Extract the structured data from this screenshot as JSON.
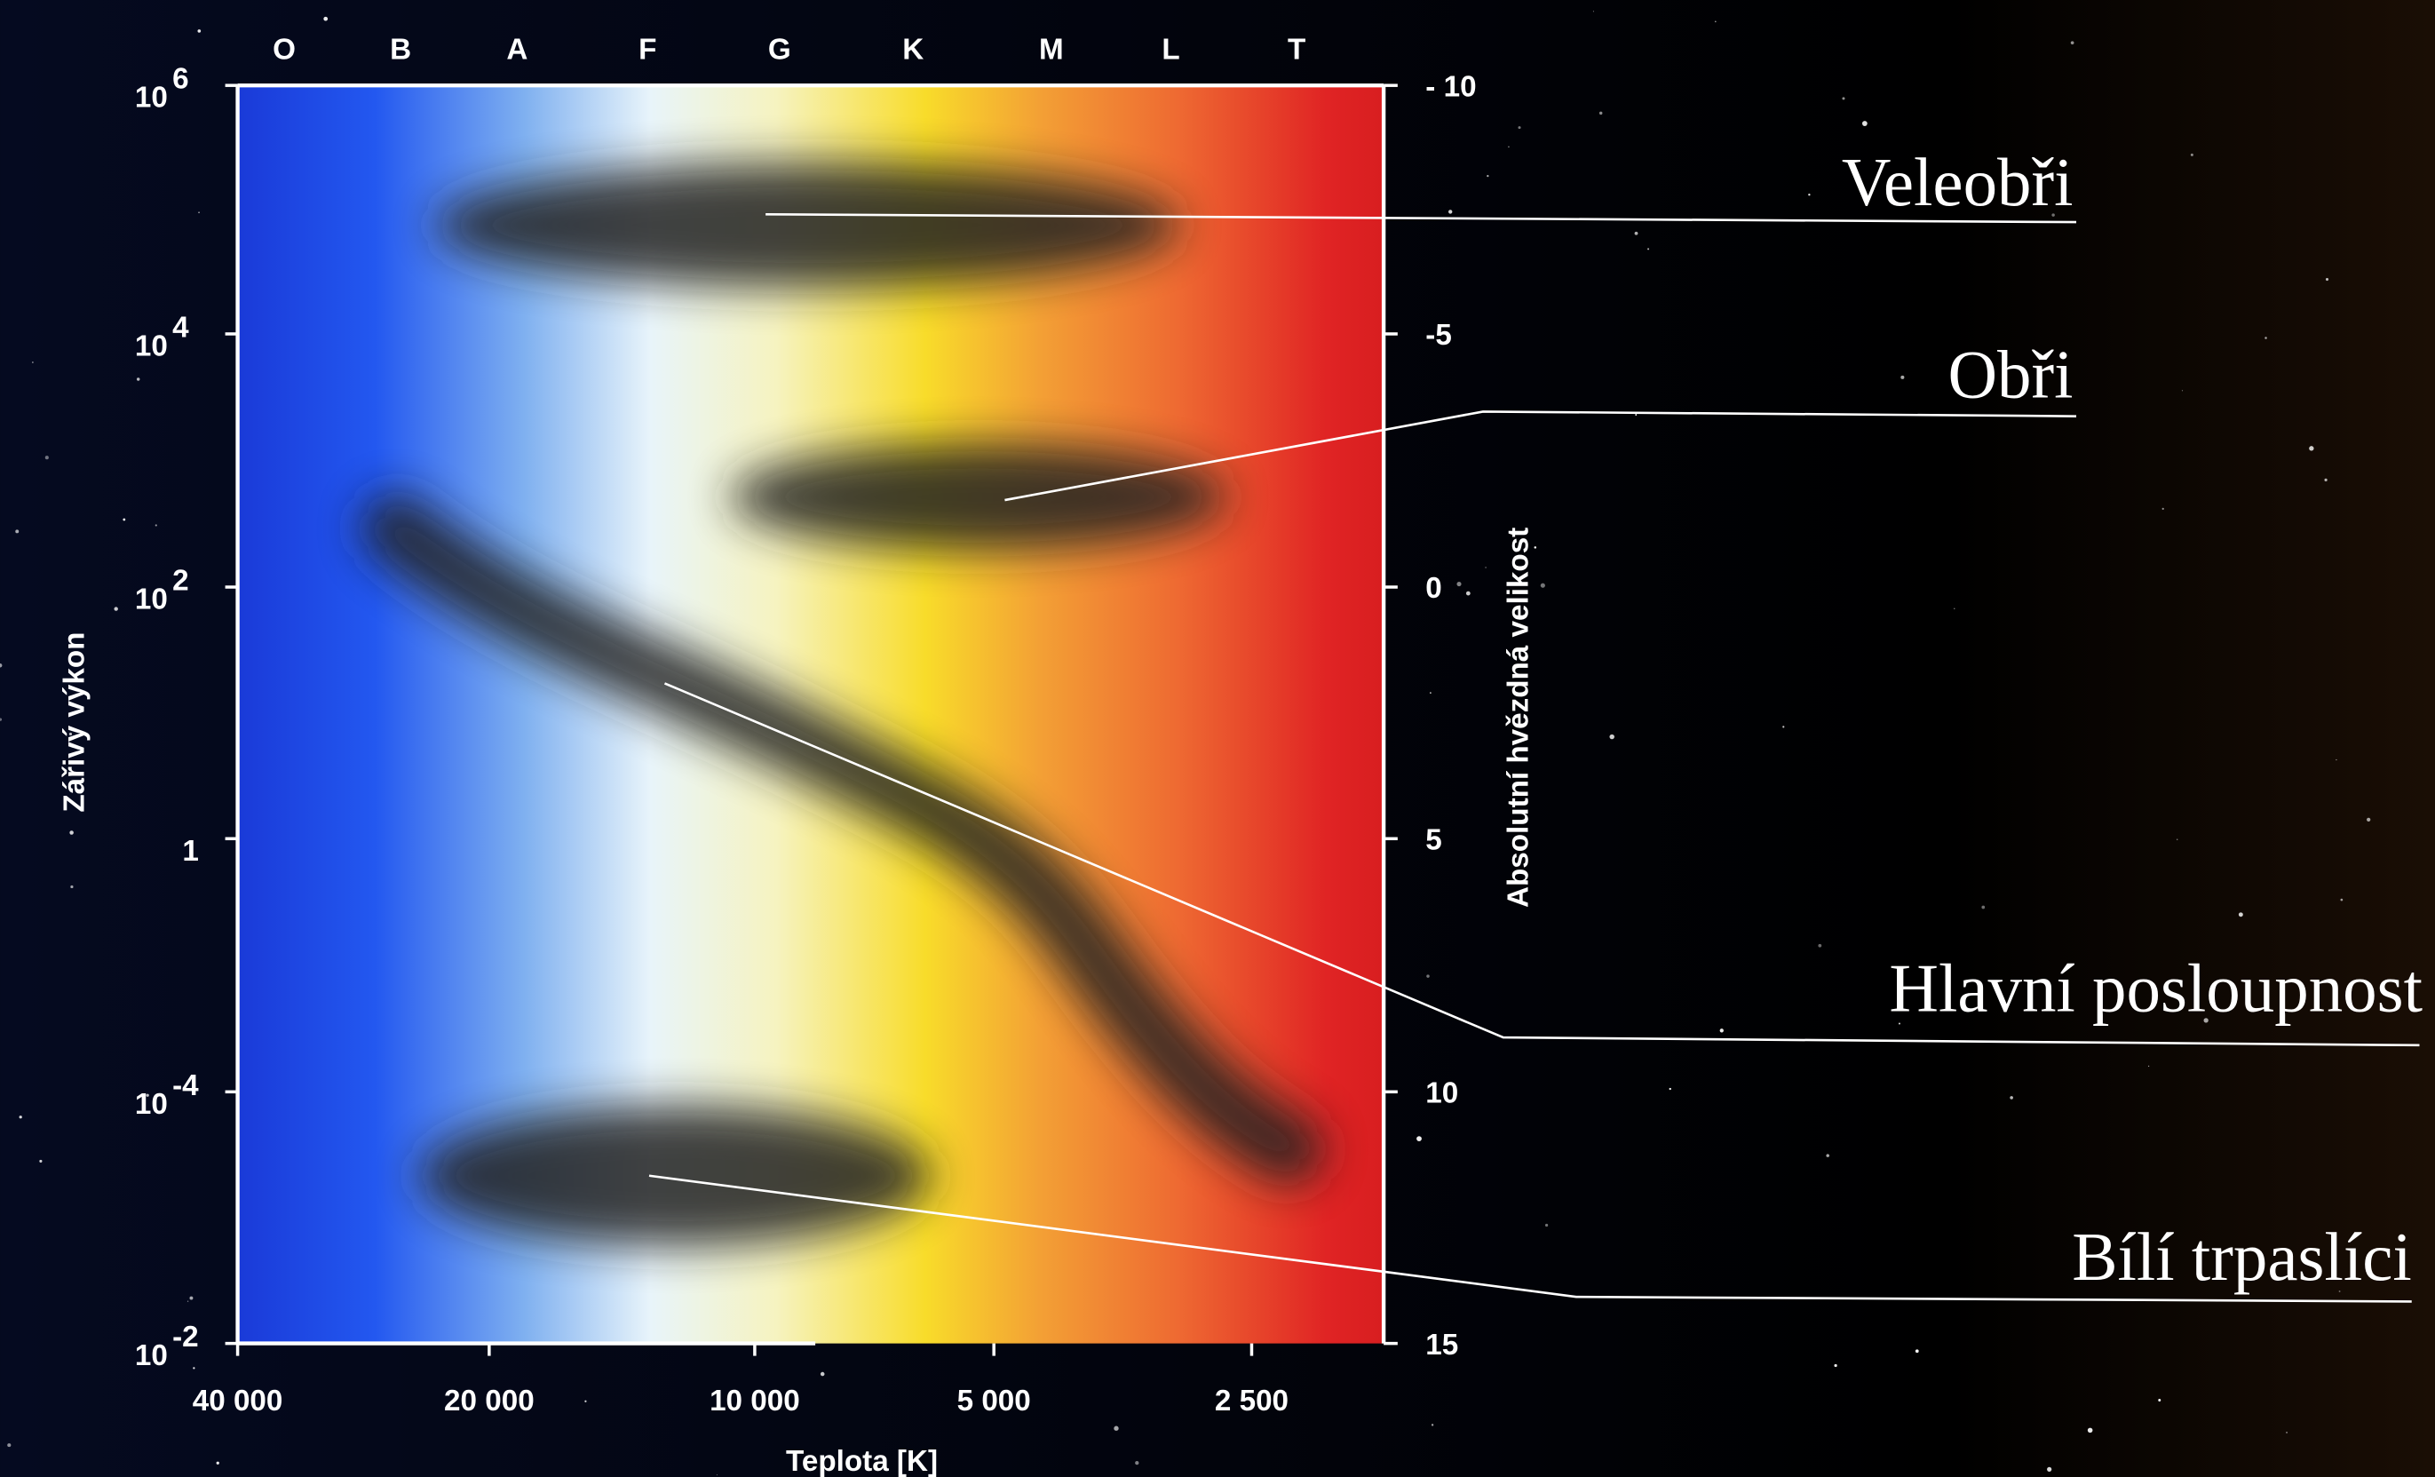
{
  "spectral_classes": [
    "O",
    "B",
    "A",
    "F",
    "G",
    "K",
    "M",
    "L",
    "T"
  ],
  "left_axis": {
    "title": "Zářivý výkon",
    "ticks": [
      {
        "base": "10",
        "exp": "6"
      },
      {
        "base": "10",
        "exp": "4"
      },
      {
        "base": "10",
        "exp": "2"
      },
      {
        "base": "1"
      },
      {
        "base": "10",
        "exp": "-4"
      },
      {
        "base": "10",
        "exp": "-2"
      }
    ]
  },
  "right_axis": {
    "title": "Absolutní hvězdná velikost",
    "ticks": [
      "- 10",
      "-5",
      "0",
      "5",
      "10",
      "15"
    ]
  },
  "bottom_axis": {
    "title": "Teplota [K]",
    "ticks": [
      "40 000",
      "20 000",
      "10 000",
      "5 000",
      "2 500"
    ]
  },
  "regions": [
    "Veleobři",
    "Obři",
    "Hlavní posloupnost",
    "Bílí trpaslíci"
  ]
}
